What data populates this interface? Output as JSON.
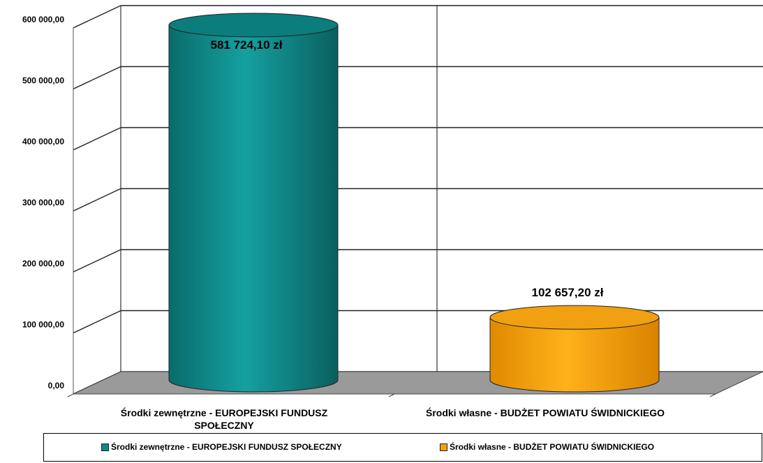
{
  "chart_data": {
    "type": "bar",
    "style": "3d-cylinder",
    "categories": [
      [
        "Środki zewnętrzne - EUROPEJSKI FUNDUSZ",
        "SPOŁECZNY"
      ],
      [
        "Środki własne - BUDŻET POWIATU ŚWIDNICKIEGO"
      ]
    ],
    "values": [
      581724.1,
      102657.2
    ],
    "data_labels": [
      "581 724,10 zł",
      "102 657,20 zł"
    ],
    "colors": [
      "#0e8a8a",
      "#f5a00a"
    ],
    "ylim": [
      0,
      600000
    ],
    "y_ticks": [
      0,
      100000,
      200000,
      300000,
      400000,
      500000,
      600000
    ],
    "y_tick_labels": [
      "0,00",
      "100 000,00",
      "200 000,00",
      "300 000,00",
      "400 000,00",
      "500 000,00",
      "600 000,00"
    ],
    "grid": true,
    "legend": {
      "placement": "bottom",
      "entries": [
        "Środki zewnętrzne - EUROPEJSKI FUNDUSZ SPOŁECZNY",
        "Środki własne - BUDŻET POWIATU ŚWIDNICKIEGO"
      ]
    }
  }
}
